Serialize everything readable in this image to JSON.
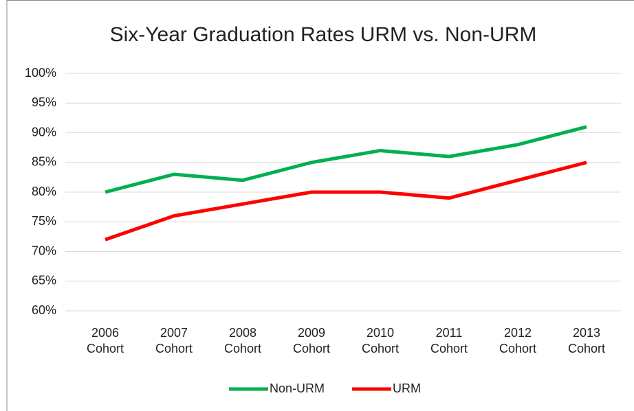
{
  "chart_data": {
    "type": "line",
    "title": "Six-Year Graduation Rates URM vs. Non-URM",
    "categories": [
      "2006 Cohort",
      "2007 Cohort",
      "2008 Cohort",
      "2009 Cohort",
      "2010 Cohort",
      "2011 Cohort",
      "2012 Cohort",
      "2013 Cohort"
    ],
    "series": [
      {
        "name": "Non-URM",
        "color": "#00b050",
        "values": [
          80,
          83,
          82,
          85,
          87,
          86,
          88,
          91
        ]
      },
      {
        "name": "URM",
        "color": "#ff0000",
        "values": [
          72,
          76,
          78,
          80,
          80,
          79,
          82,
          85
        ]
      }
    ],
    "ylim": [
      60,
      100
    ],
    "yticks": [
      {
        "value": 60,
        "label": "60%"
      },
      {
        "value": 65,
        "label": "65%"
      },
      {
        "value": 70,
        "label": "70%"
      },
      {
        "value": 75,
        "label": "75%"
      },
      {
        "value": 80,
        "label": "80%"
      },
      {
        "value": 85,
        "label": "85%"
      },
      {
        "value": 90,
        "label": "90%"
      },
      {
        "value": 95,
        "label": "95%"
      },
      {
        "value": 100,
        "label": "100%"
      }
    ],
    "grid": true,
    "legend": "bottom"
  }
}
